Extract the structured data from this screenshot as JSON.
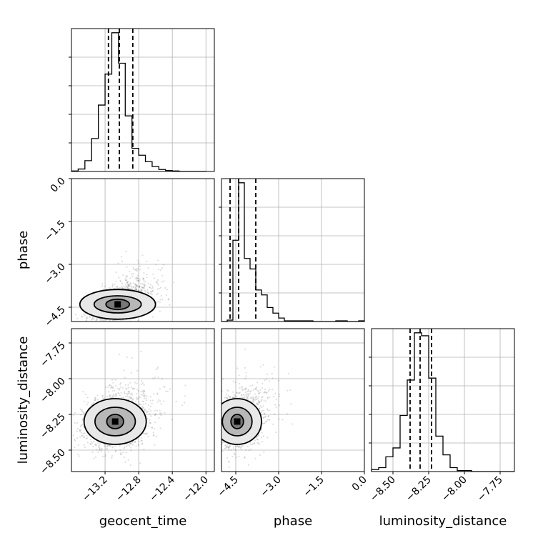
{
  "chart_data": {
    "type": "corner",
    "parameters": [
      "geocent_time",
      "phase",
      "luminosity_distance"
    ],
    "grid": true,
    "axes": {
      "geocent_time": {
        "lim": [
          -13.6,
          -11.9
        ],
        "ticks": [
          -13.2,
          -12.8,
          -12.4,
          -12.0
        ],
        "tick_labels": [
          "−13.2",
          "−12.8",
          "−12.4",
          "−12.0"
        ]
      },
      "phase": {
        "lim": [
          -5.0,
          0.0
        ],
        "ticks": [
          -4.5,
          -3.0,
          -1.5,
          0.0
        ],
        "tick_labels": [
          "−4.5",
          "−3.0",
          "−1.5",
          "0.0"
        ]
      },
      "luminosity_distance": {
        "lim": [
          -8.65,
          -7.65
        ],
        "ticks": [
          -8.5,
          -8.25,
          -8.0,
          -7.75
        ],
        "tick_labels": [
          "−8.50",
          "−8.25",
          "−8.00",
          "−7.75"
        ]
      }
    },
    "histograms": [
      {
        "parameter": "geocent_time",
        "edges": [
          -13.6,
          -13.52,
          -13.44,
          -13.36,
          -13.28,
          -13.2,
          -13.12,
          -13.04,
          -12.96,
          -12.88,
          -12.8,
          -12.72,
          -12.64,
          -12.56,
          -12.48,
          -12.4,
          -12.32,
          -12.24,
          -12.16,
          -12.08,
          -12.0
        ],
        "counts": [
          1,
          5,
          22,
          67,
          135,
          198,
          282,
          220,
          113,
          47,
          33,
          20,
          10,
          4,
          2,
          1,
          0,
          0,
          0,
          0
        ],
        "quantiles": [
          -13.16,
          -13.03,
          -12.87
        ]
      },
      {
        "parameter": "phase",
        "edges": [
          -5.0,
          -4.8,
          -4.6,
          -4.4,
          -4.2,
          -4.0,
          -3.8,
          -3.6,
          -3.4,
          -3.2,
          -3.0,
          -2.8,
          -2.6,
          -2.4,
          -2.2,
          -2.0,
          -1.8,
          -1.6,
          -1.4,
          -1.2,
          -1.0,
          -0.8,
          -0.6,
          -0.4,
          -0.2,
          0.0
        ],
        "counts": [
          0,
          2,
          116,
          198,
          90,
          75,
          45,
          38,
          20,
          12,
          5,
          1,
          1,
          1,
          1,
          1,
          0,
          0,
          0,
          0,
          1,
          1,
          0,
          0,
          1
        ],
        "quantiles": [
          -4.7,
          -4.4,
          -3.8
        ]
      },
      {
        "parameter": "luminosity_distance",
        "edges": [
          -8.65,
          -8.6,
          -8.55,
          -8.5,
          -8.45,
          -8.4,
          -8.35,
          -8.3,
          -8.25,
          -8.2,
          -8.15,
          -8.1,
          -8.05,
          -8.0,
          -7.95,
          -7.9,
          -7.85,
          -7.8,
          -7.75,
          -7.7,
          -7.65
        ],
        "counts": [
          2,
          4,
          15,
          24,
          57,
          93,
          141,
          138,
          95,
          36,
          17,
          4,
          1,
          1,
          0,
          0,
          0,
          0,
          0,
          0
        ],
        "quantiles": [
          -8.38,
          -8.31,
          -8.23
        ]
      }
    ],
    "scatter_panels": [
      {
        "x": "geocent_time",
        "y": "phase",
        "center": [
          -13.05,
          -4.4
        ],
        "sd": [
          0.16,
          0.35
        ],
        "rho": 0.4,
        "contours": [
          [
            0.14,
            0.18
          ],
          [
            0.28,
            0.3
          ],
          [
            0.45,
            0.52
          ]
        ]
      },
      {
        "x": "geocent_time",
        "y": "luminosity_distance",
        "center": [
          -13.08,
          -8.3
        ],
        "sd": [
          0.18,
          0.09
        ],
        "rho": 0.1,
        "contours": [
          [
            0.1,
            0.05
          ],
          [
            0.24,
            0.1
          ],
          [
            0.37,
            0.16
          ]
        ]
      },
      {
        "x": "phase",
        "y": "luminosity_distance",
        "center": [
          -4.45,
          -8.3
        ],
        "sd": [
          0.4,
          0.09
        ],
        "rho": 0.05,
        "contours": [
          [
            0.22,
            0.05
          ],
          [
            0.52,
            0.1
          ],
          [
            0.85,
            0.16
          ]
        ]
      }
    ]
  }
}
